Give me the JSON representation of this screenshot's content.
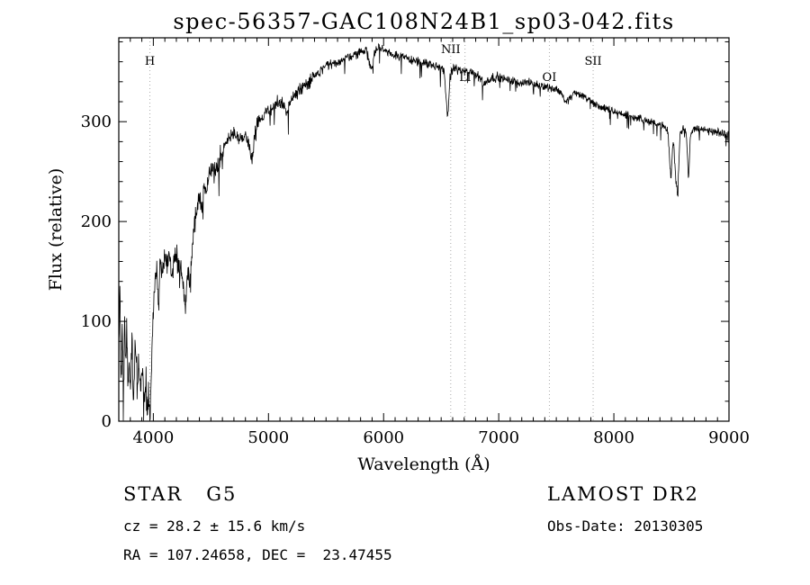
{
  "annotations": {
    "class_line": "STAR   G5",
    "survey": "LAMOST DR2",
    "cz_line": "cz = 28.2 ± 15.6 km/s",
    "obs_date_line": "Obs-Date: 20130305",
    "radec_line": "RA = 107.24658, DEC =  23.47455"
  },
  "chart_data": {
    "type": "line",
    "title": "spec-56357-GAC108N24B1_sp03-042.fits",
    "xlabel": "Wavelength (Å)",
    "ylabel": "Flux (relative)",
    "xlim": [
      3700,
      9000
    ],
    "ylim": [
      0,
      384
    ],
    "x_ticks": [
      4000,
      5000,
      6000,
      7000,
      8000,
      9000
    ],
    "y_ticks": [
      0,
      100,
      200,
      300
    ],
    "minor_x_step": 100,
    "minor_y_step": 20,
    "grid": false,
    "line_color": "#000000",
    "marker_line_color": "#aaaaaa",
    "line_markers": [
      {
        "label": "H",
        "wavelength": 3970,
        "row": 2
      },
      {
        "label": "NII",
        "wavelength": 6583,
        "row": 1
      },
      {
        "label": "Li",
        "wavelength": 6707,
        "row": 3
      },
      {
        "label": "OI",
        "wavelength": 7440,
        "row": 3
      },
      {
        "label": "SII",
        "wavelength": 7820,
        "row": 2
      }
    ],
    "series": [
      {
        "name": "spectrum",
        "envelope_points": [
          [
            3700,
            70
          ],
          [
            3710,
            125
          ],
          [
            3720,
            35
          ],
          [
            3730,
            95
          ],
          [
            3740,
            15
          ],
          [
            3750,
            105
          ],
          [
            3760,
            55
          ],
          [
            3770,
            95
          ],
          [
            3780,
            30
          ],
          [
            3790,
            80
          ],
          [
            3800,
            28
          ],
          [
            3815,
            85
          ],
          [
            3828,
            12
          ],
          [
            3840,
            70
          ],
          [
            3852,
            80
          ],
          [
            3862,
            20
          ],
          [
            3875,
            65
          ],
          [
            3888,
            28
          ],
          [
            3900,
            58
          ],
          [
            3912,
            35
          ],
          [
            3924,
            18
          ],
          [
            3936,
            50
          ],
          [
            3948,
            12
          ],
          [
            3960,
            30
          ],
          [
            3972,
            3
          ],
          [
            3985,
            55
          ],
          [
            4000,
            115
          ],
          [
            4015,
            140
          ],
          [
            4030,
            150
          ],
          [
            4045,
            122
          ],
          [
            4060,
            158
          ],
          [
            4080,
            148
          ],
          [
            4100,
            170
          ],
          [
            4120,
            155
          ],
          [
            4140,
            168
          ],
          [
            4160,
            148
          ],
          [
            4180,
            162
          ],
          [
            4200,
            168
          ],
          [
            4220,
            152
          ],
          [
            4240,
            160
          ],
          [
            4260,
            132
          ],
          [
            4280,
            115
          ],
          [
            4300,
            155
          ],
          [
            4320,
            138
          ],
          [
            4340,
            180
          ],
          [
            4360,
            200
          ],
          [
            4380,
            215
          ],
          [
            4400,
            222
          ],
          [
            4420,
            212
          ],
          [
            4440,
            228
          ],
          [
            4460,
            235
          ],
          [
            4480,
            242
          ],
          [
            4500,
            250
          ],
          [
            4530,
            248
          ],
          [
            4560,
            258
          ],
          [
            4590,
            268
          ],
          [
            4620,
            275
          ],
          [
            4650,
            282
          ],
          [
            4680,
            288
          ],
          [
            4710,
            288
          ],
          [
            4740,
            284
          ],
          [
            4770,
            287
          ],
          [
            4800,
            284
          ],
          [
            4830,
            278
          ],
          [
            4860,
            262
          ],
          [
            4880,
            288
          ],
          [
            4900,
            298
          ],
          [
            4930,
            303
          ],
          [
            4960,
            307
          ],
          [
            5000,
            311
          ],
          [
            5040,
            315
          ],
          [
            5080,
            319
          ],
          [
            5120,
            317
          ],
          [
            5160,
            306
          ],
          [
            5200,
            323
          ],
          [
            5250,
            330
          ],
          [
            5300,
            335
          ],
          [
            5350,
            340
          ],
          [
            5400,
            346
          ],
          [
            5450,
            350
          ],
          [
            5500,
            355
          ],
          [
            5550,
            357
          ],
          [
            5600,
            360
          ],
          [
            5650,
            362
          ],
          [
            5700,
            365
          ],
          [
            5750,
            367
          ],
          [
            5800,
            370
          ],
          [
            5850,
            372
          ],
          [
            5890,
            352
          ],
          [
            5920,
            368
          ],
          [
            5950,
            374
          ],
          [
            6000,
            372
          ],
          [
            6050,
            369
          ],
          [
            6100,
            367
          ],
          [
            6150,
            365
          ],
          [
            6200,
            364
          ],
          [
            6250,
            362
          ],
          [
            6300,
            360
          ],
          [
            6350,
            358
          ],
          [
            6400,
            357
          ],
          [
            6450,
            355
          ],
          [
            6500,
            354
          ],
          [
            6530,
            350
          ],
          [
            6555,
            300
          ],
          [
            6575,
            342
          ],
          [
            6600,
            354
          ],
          [
            6650,
            352
          ],
          [
            6700,
            350
          ],
          [
            6750,
            349
          ],
          [
            6800,
            347
          ],
          [
            6850,
            344
          ],
          [
            6870,
            336
          ],
          [
            6900,
            342
          ],
          [
            6950,
            344
          ],
          [
            7000,
            345
          ],
          [
            7060,
            342
          ],
          [
            7120,
            341
          ],
          [
            7180,
            339
          ],
          [
            7240,
            340
          ],
          [
            7300,
            338
          ],
          [
            7360,
            336
          ],
          [
            7420,
            335
          ],
          [
            7480,
            333
          ],
          [
            7540,
            330
          ],
          [
            7580,
            319
          ],
          [
            7620,
            324
          ],
          [
            7660,
            329
          ],
          [
            7700,
            327
          ],
          [
            7750,
            325
          ],
          [
            7800,
            320
          ],
          [
            7850,
            317
          ],
          [
            7900,
            314
          ],
          [
            7950,
            312
          ],
          [
            8000,
            310
          ],
          [
            8060,
            308
          ],
          [
            8120,
            306
          ],
          [
            8180,
            304
          ],
          [
            8240,
            303
          ],
          [
            8300,
            300
          ],
          [
            8360,
            298
          ],
          [
            8420,
            296
          ],
          [
            8470,
            290
          ],
          [
            8495,
            242
          ],
          [
            8515,
            283
          ],
          [
            8540,
            240
          ],
          [
            8555,
            232
          ],
          [
            8575,
            288
          ],
          [
            8600,
            294
          ],
          [
            8630,
            290
          ],
          [
            8648,
            240
          ],
          [
            8665,
            285
          ],
          [
            8690,
            293
          ],
          [
            8720,
            294
          ],
          [
            8760,
            292
          ],
          [
            8800,
            291
          ],
          [
            8850,
            290
          ],
          [
            8900,
            289
          ],
          [
            8950,
            288
          ],
          [
            9000,
            288
          ]
        ],
        "noise_segments": [
          {
            "from": 3700,
            "to": 4000,
            "amp": 22
          },
          {
            "from": 4000,
            "to": 4600,
            "amp": 14
          },
          {
            "from": 4600,
            "to": 5400,
            "amp": 9
          },
          {
            "from": 5400,
            "to": 7000,
            "amp": 6
          },
          {
            "from": 7000,
            "to": 9001,
            "amp": 5
          }
        ]
      }
    ]
  }
}
